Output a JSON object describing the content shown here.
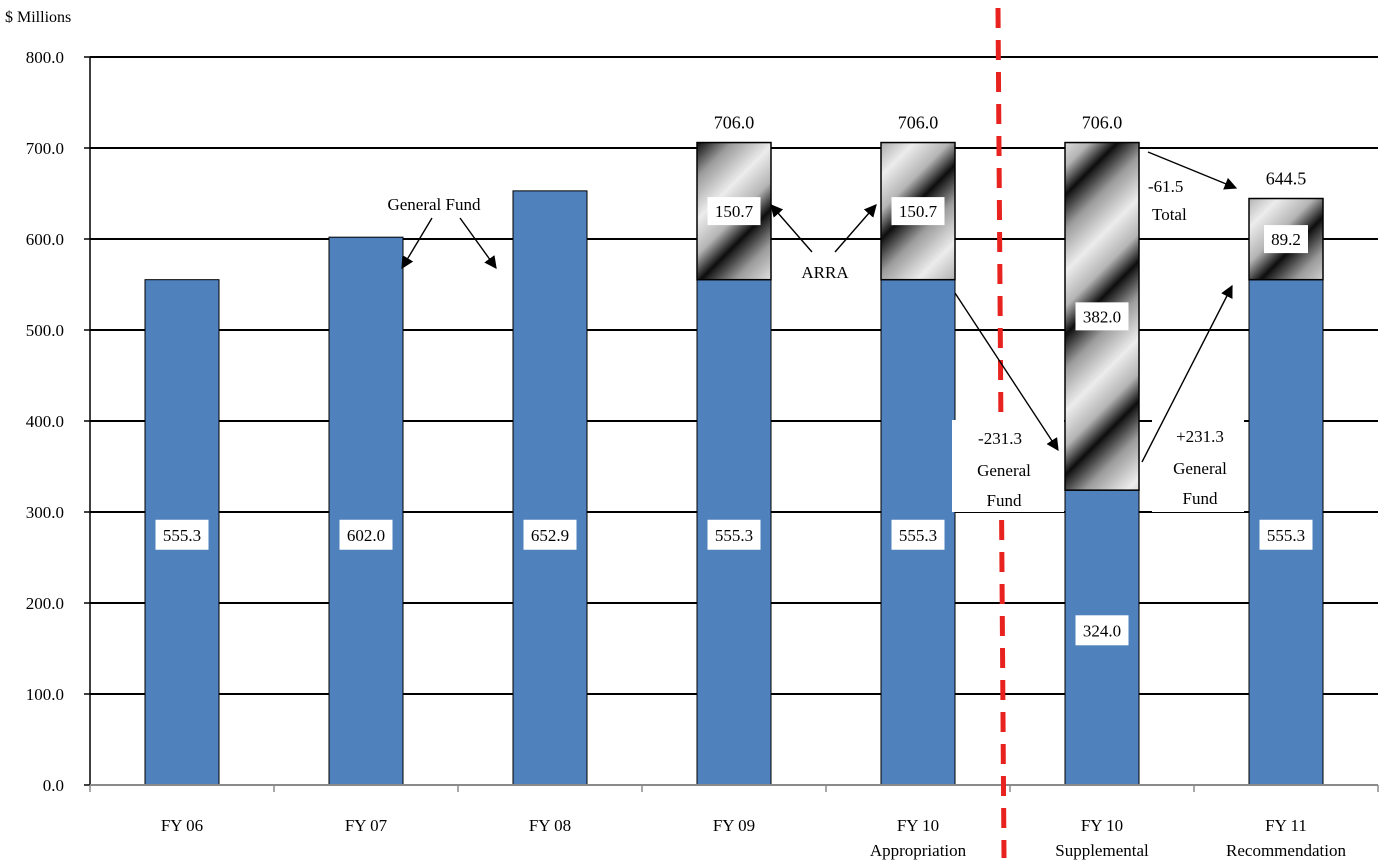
{
  "chart_data": {
    "type": "bar",
    "stacked": true,
    "title": "",
    "ylabel": "$ Millions",
    "xlabel": "",
    "ylim": [
      0,
      800
    ],
    "yticks": [
      "0.0",
      "100.0",
      "200.0",
      "300.0",
      "400.0",
      "500.0",
      "600.0",
      "700.0",
      "800.0"
    ],
    "ytick_values": [
      0,
      100,
      200,
      300,
      400,
      500,
      600,
      700,
      800
    ],
    "grid": true,
    "categories": [
      [
        "FY 06"
      ],
      [
        "FY 07"
      ],
      [
        "FY 08"
      ],
      [
        "FY 09"
      ],
      [
        "FY 10",
        "Appropriation"
      ],
      [
        "FY 10",
        "Supplemental"
      ],
      [
        "FY 11",
        "Recommendation"
      ]
    ],
    "series": [
      {
        "name": "General Fund",
        "color": "#4f81bd",
        "values": [
          555.3,
          602.0,
          652.9,
          555.3,
          555.3,
          324.0,
          555.3
        ],
        "labels": [
          "555.3",
          "602.0",
          "652.9",
          "555.3",
          "555.3",
          "324.0",
          "555.3"
        ]
      },
      {
        "name": "ARRA",
        "pattern": "diagonal-gradient-stripes",
        "values": [
          0,
          0,
          0,
          150.7,
          150.7,
          382.0,
          89.2
        ],
        "labels": [
          "",
          "",
          "",
          "150.7",
          "150.7",
          "382.0",
          "89.2"
        ]
      }
    ],
    "totals": [
      "",
      "",
      "",
      "706.0",
      "706.0",
      "706.0",
      "644.5"
    ],
    "divider": {
      "after_category_index": 4,
      "color": "#e8231f",
      "style": "dashed"
    },
    "annotations": {
      "general_fund": "General Fund",
      "arra": "ARRA",
      "total_change": [
        "-61.5",
        "Total"
      ],
      "gf_decrease": [
        "-231.3",
        "General",
        "Fund"
      ],
      "gf_increase": [
        "+231.3",
        "General",
        "Fund"
      ]
    },
    "legend": "none"
  }
}
